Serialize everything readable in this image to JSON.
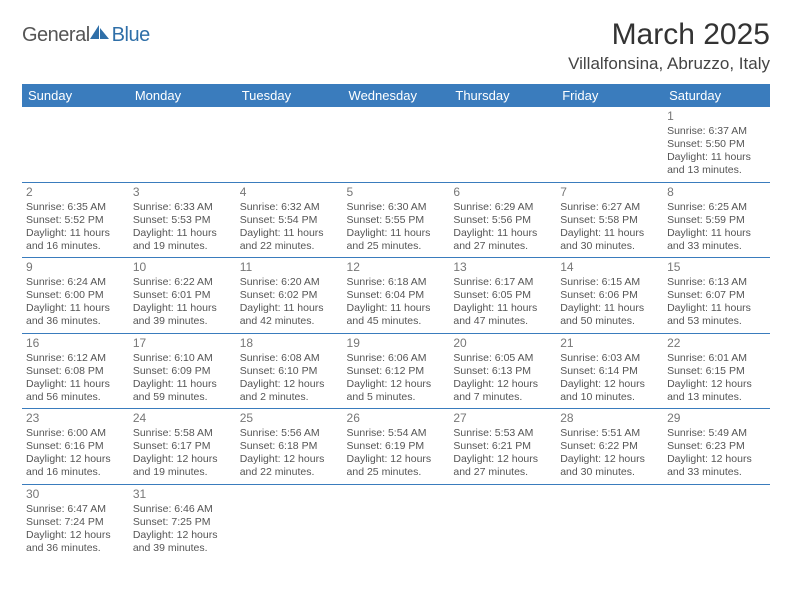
{
  "logo": {
    "text1": "General",
    "text2": "Blue"
  },
  "title": "March 2025",
  "subtitle": "Villalfonsina, Abruzzo, Italy",
  "header_bg": "#3a7cbd",
  "header_fg": "#ffffff",
  "text_color": "#555555",
  "days": [
    "Sunday",
    "Monday",
    "Tuesday",
    "Wednesday",
    "Thursday",
    "Friday",
    "Saturday"
  ],
  "weeks": [
    [
      null,
      null,
      null,
      null,
      null,
      null,
      {
        "n": "1",
        "sr": "6:37 AM",
        "ss": "5:50 PM",
        "dl": "11 hours and 13 minutes."
      }
    ],
    [
      {
        "n": "2",
        "sr": "6:35 AM",
        "ss": "5:52 PM",
        "dl": "11 hours and 16 minutes."
      },
      {
        "n": "3",
        "sr": "6:33 AM",
        "ss": "5:53 PM",
        "dl": "11 hours and 19 minutes."
      },
      {
        "n": "4",
        "sr": "6:32 AM",
        "ss": "5:54 PM",
        "dl": "11 hours and 22 minutes."
      },
      {
        "n": "5",
        "sr": "6:30 AM",
        "ss": "5:55 PM",
        "dl": "11 hours and 25 minutes."
      },
      {
        "n": "6",
        "sr": "6:29 AM",
        "ss": "5:56 PM",
        "dl": "11 hours and 27 minutes."
      },
      {
        "n": "7",
        "sr": "6:27 AM",
        "ss": "5:58 PM",
        "dl": "11 hours and 30 minutes."
      },
      {
        "n": "8",
        "sr": "6:25 AM",
        "ss": "5:59 PM",
        "dl": "11 hours and 33 minutes."
      }
    ],
    [
      {
        "n": "9",
        "sr": "6:24 AM",
        "ss": "6:00 PM",
        "dl": "11 hours and 36 minutes."
      },
      {
        "n": "10",
        "sr": "6:22 AM",
        "ss": "6:01 PM",
        "dl": "11 hours and 39 minutes."
      },
      {
        "n": "11",
        "sr": "6:20 AM",
        "ss": "6:02 PM",
        "dl": "11 hours and 42 minutes."
      },
      {
        "n": "12",
        "sr": "6:18 AM",
        "ss": "6:04 PM",
        "dl": "11 hours and 45 minutes."
      },
      {
        "n": "13",
        "sr": "6:17 AM",
        "ss": "6:05 PM",
        "dl": "11 hours and 47 minutes."
      },
      {
        "n": "14",
        "sr": "6:15 AM",
        "ss": "6:06 PM",
        "dl": "11 hours and 50 minutes."
      },
      {
        "n": "15",
        "sr": "6:13 AM",
        "ss": "6:07 PM",
        "dl": "11 hours and 53 minutes."
      }
    ],
    [
      {
        "n": "16",
        "sr": "6:12 AM",
        "ss": "6:08 PM",
        "dl": "11 hours and 56 minutes."
      },
      {
        "n": "17",
        "sr": "6:10 AM",
        "ss": "6:09 PM",
        "dl": "11 hours and 59 minutes."
      },
      {
        "n": "18",
        "sr": "6:08 AM",
        "ss": "6:10 PM",
        "dl": "12 hours and 2 minutes."
      },
      {
        "n": "19",
        "sr": "6:06 AM",
        "ss": "6:12 PM",
        "dl": "12 hours and 5 minutes."
      },
      {
        "n": "20",
        "sr": "6:05 AM",
        "ss": "6:13 PM",
        "dl": "12 hours and 7 minutes."
      },
      {
        "n": "21",
        "sr": "6:03 AM",
        "ss": "6:14 PM",
        "dl": "12 hours and 10 minutes."
      },
      {
        "n": "22",
        "sr": "6:01 AM",
        "ss": "6:15 PM",
        "dl": "12 hours and 13 minutes."
      }
    ],
    [
      {
        "n": "23",
        "sr": "6:00 AM",
        "ss": "6:16 PM",
        "dl": "12 hours and 16 minutes."
      },
      {
        "n": "24",
        "sr": "5:58 AM",
        "ss": "6:17 PM",
        "dl": "12 hours and 19 minutes."
      },
      {
        "n": "25",
        "sr": "5:56 AM",
        "ss": "6:18 PM",
        "dl": "12 hours and 22 minutes."
      },
      {
        "n": "26",
        "sr": "5:54 AM",
        "ss": "6:19 PM",
        "dl": "12 hours and 25 minutes."
      },
      {
        "n": "27",
        "sr": "5:53 AM",
        "ss": "6:21 PM",
        "dl": "12 hours and 27 minutes."
      },
      {
        "n": "28",
        "sr": "5:51 AM",
        "ss": "6:22 PM",
        "dl": "12 hours and 30 minutes."
      },
      {
        "n": "29",
        "sr": "5:49 AM",
        "ss": "6:23 PM",
        "dl": "12 hours and 33 minutes."
      }
    ],
    [
      {
        "n": "30",
        "sr": "6:47 AM",
        "ss": "7:24 PM",
        "dl": "12 hours and 36 minutes."
      },
      {
        "n": "31",
        "sr": "6:46 AM",
        "ss": "7:25 PM",
        "dl": "12 hours and 39 minutes."
      },
      null,
      null,
      null,
      null,
      null
    ]
  ],
  "labels": {
    "sunrise": "Sunrise:",
    "sunset": "Sunset:",
    "daylight": "Daylight:"
  }
}
